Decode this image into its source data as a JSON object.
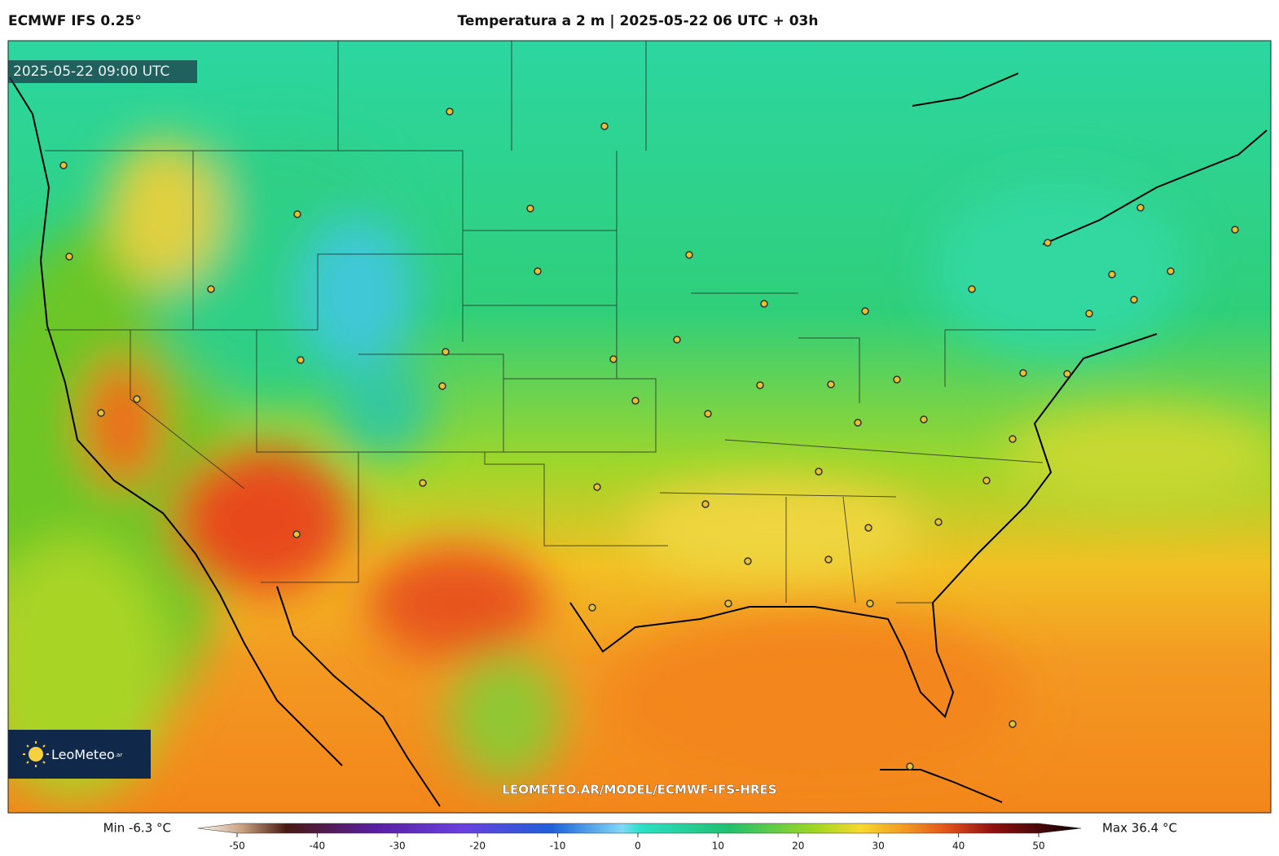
{
  "header": {
    "model": "ECMWF IFS 0.25°",
    "title": "Temperatura a 2 m | 2025-05-22 06 UTC + 03h"
  },
  "map": {
    "valid_time": "2025-05-22 09:00 UTC",
    "watermark": "LEOMETEO.AR/MODEL/ECMWF-IFS-HRES"
  },
  "logo": {
    "text": "LeoMeteo",
    "suffix": ".ar"
  },
  "colorbar": {
    "min_label": "Min -6.3 °C",
    "max_label": "Max 36.4 °C",
    "ticks": [
      -50,
      -40,
      -30,
      -20,
      -10,
      0,
      10,
      20,
      30,
      40,
      50
    ]
  }
}
